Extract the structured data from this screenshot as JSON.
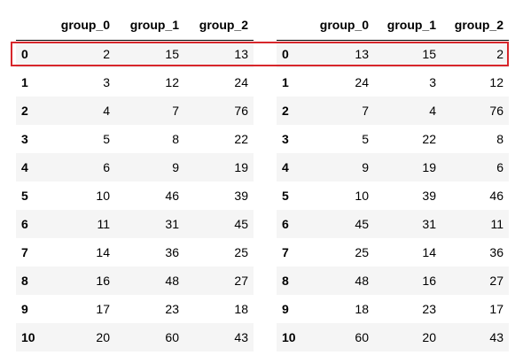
{
  "tables": [
    {
      "columns": [
        "group_0",
        "group_1",
        "group_2"
      ],
      "rows": [
        {
          "index": "0",
          "values": [
            "2",
            "15",
            "13"
          ]
        },
        {
          "index": "1",
          "values": [
            "3",
            "12",
            "24"
          ]
        },
        {
          "index": "2",
          "values": [
            "4",
            "7",
            "76"
          ]
        },
        {
          "index": "3",
          "values": [
            "5",
            "8",
            "22"
          ]
        },
        {
          "index": "4",
          "values": [
            "6",
            "9",
            "19"
          ]
        },
        {
          "index": "5",
          "values": [
            "10",
            "46",
            "39"
          ]
        },
        {
          "index": "6",
          "values": [
            "11",
            "31",
            "45"
          ]
        },
        {
          "index": "7",
          "values": [
            "14",
            "36",
            "25"
          ]
        },
        {
          "index": "8",
          "values": [
            "16",
            "48",
            "27"
          ]
        },
        {
          "index": "9",
          "values": [
            "17",
            "23",
            "18"
          ]
        },
        {
          "index": "10",
          "values": [
            "20",
            "60",
            "43"
          ]
        }
      ]
    },
    {
      "columns": [
        "group_0",
        "group_1",
        "group_2"
      ],
      "rows": [
        {
          "index": "0",
          "values": [
            "13",
            "15",
            "2"
          ]
        },
        {
          "index": "1",
          "values": [
            "24",
            "3",
            "12"
          ]
        },
        {
          "index": "2",
          "values": [
            "7",
            "4",
            "76"
          ]
        },
        {
          "index": "3",
          "values": [
            "5",
            "22",
            "8"
          ]
        },
        {
          "index": "4",
          "values": [
            "9",
            "19",
            "6"
          ]
        },
        {
          "index": "5",
          "values": [
            "10",
            "39",
            "46"
          ]
        },
        {
          "index": "6",
          "values": [
            "45",
            "31",
            "11"
          ]
        },
        {
          "index": "7",
          "values": [
            "25",
            "14",
            "36"
          ]
        },
        {
          "index": "8",
          "values": [
            "48",
            "16",
            "27"
          ]
        },
        {
          "index": "9",
          "values": [
            "18",
            "23",
            "17"
          ]
        },
        {
          "index": "10",
          "values": [
            "60",
            "20",
            "43"
          ]
        }
      ]
    }
  ],
  "highlight": {
    "row_index": "0",
    "color": "#d7262b"
  },
  "colors": {
    "stripe": "#f5f5f5",
    "background": "#ffffff",
    "text": "#000000"
  }
}
